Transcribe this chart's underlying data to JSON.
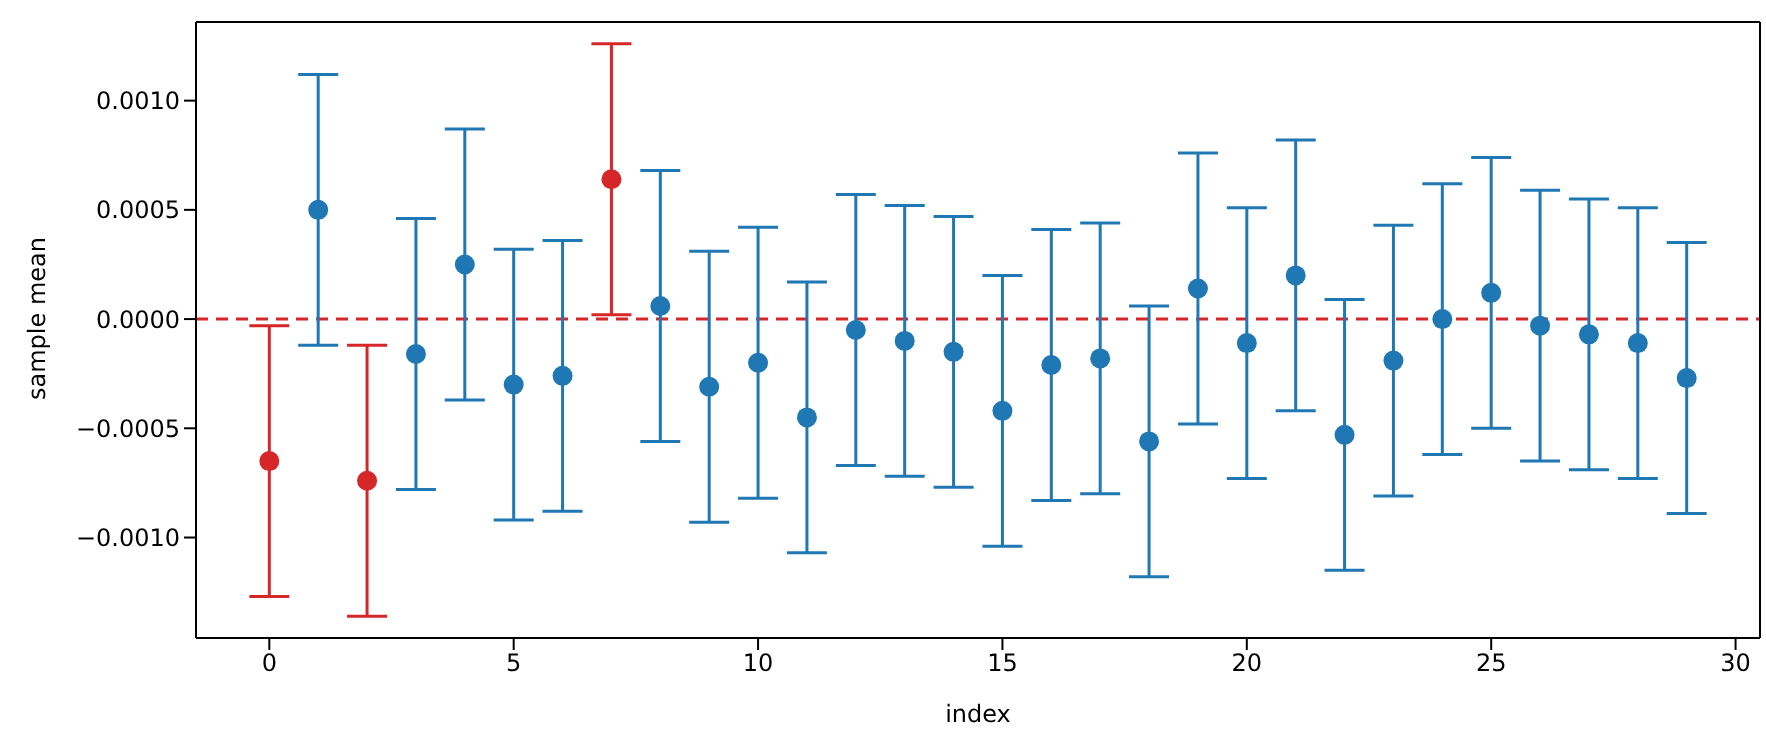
{
  "chart_data": {
    "type": "scatter",
    "xlabel": "index",
    "ylabel": "sample mean",
    "x": [
      0,
      1,
      2,
      3,
      4,
      5,
      6,
      7,
      8,
      9,
      10,
      11,
      12,
      13,
      14,
      15,
      16,
      17,
      18,
      19,
      20,
      21,
      22,
      23,
      24,
      25,
      26,
      27,
      28,
      29
    ],
    "values": [
      -0.00065,
      0.0005,
      -0.00074,
      -0.00016,
      0.00025,
      -0.0003,
      -0.00026,
      0.00064,
      6e-05,
      -0.00031,
      -0.0002,
      -0.00045,
      -5e-05,
      -0.0001,
      -0.00015,
      -0.00042,
      -0.00021,
      -0.00018,
      -0.00056,
      0.00014,
      -0.00011,
      0.0002,
      -0.00053,
      -0.00019,
      0,
      0.00012,
      -3e-05,
      -7e-05,
      -0.00011,
      -0.00027
    ],
    "errors": [
      0.00062,
      0.00062,
      0.00062,
      0.00062,
      0.00062,
      0.00062,
      0.00062,
      0.00062,
      0.00062,
      0.00062,
      0.00062,
      0.00062,
      0.00062,
      0.00062,
      0.00062,
      0.00062,
      0.00062,
      0.00062,
      0.00062,
      0.00062,
      0.00062,
      0.00062,
      0.00062,
      0.00062,
      0.00062,
      0.00062,
      0.00062,
      0.00062,
      0.00062,
      0.00062
    ],
    "colors": [
      "#d62728",
      "#1f77b4",
      "#d62728",
      "#1f77b4",
      "#1f77b4",
      "#1f77b4",
      "#1f77b4",
      "#d62728",
      "#1f77b4",
      "#1f77b4",
      "#1f77b4",
      "#1f77b4",
      "#1f77b4",
      "#1f77b4",
      "#1f77b4",
      "#1f77b4",
      "#1f77b4",
      "#1f77b4",
      "#1f77b4",
      "#1f77b4",
      "#1f77b4",
      "#1f77b4",
      "#1f77b4",
      "#1f77b4",
      "#1f77b4",
      "#1f77b4",
      "#1f77b4",
      "#1f77b4",
      "#1f77b4",
      "#1f77b4"
    ],
    "marker": "circle",
    "xlim": [
      -1.5,
      30.5
    ],
    "xticks": [
      0,
      5,
      10,
      15,
      20,
      25,
      30
    ],
    "ylim": [
      -0.00146,
      0.00136
    ],
    "yticks": [
      {
        "value": -0.001,
        "label": "−0.0010"
      },
      {
        "value": -0.0005,
        "label": "−0.0005"
      },
      {
        "value": 0,
        "label": "0.0000"
      },
      {
        "value": 0.0005,
        "label": "0.0005"
      },
      {
        "value": 0.001,
        "label": "0.0010"
      }
    ],
    "ref_lines": [
      {
        "axis": "y",
        "value": 0,
        "color": "#d62728",
        "line_style": "dashed"
      }
    ],
    "grid": false,
    "legend": false
  }
}
